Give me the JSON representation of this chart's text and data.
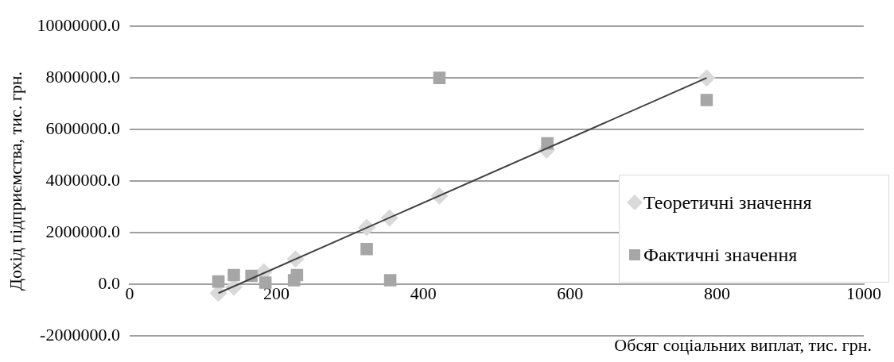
{
  "chart_data": {
    "type": "scatter",
    "xlabel": "Обсяг соціальних виплат, тис. грн.",
    "ylabel": "Дохід підприємства, тис. грн.",
    "xlim": [
      0,
      1000
    ],
    "xticks": [
      0,
      200,
      400,
      600,
      800,
      1000
    ],
    "ylim": [
      -2000000,
      10000000
    ],
    "yticks": [
      {
        "value": -2000000,
        "label": "-2000000.0"
      },
      {
        "value": 0,
        "label": "0.0"
      },
      {
        "value": 2000000,
        "label": "2000000.0"
      },
      {
        "value": 4000000,
        "label": "4000000.0"
      },
      {
        "value": 6000000,
        "label": "6000000.0"
      },
      {
        "value": 8000000,
        "label": "8000000.0"
      },
      {
        "value": 10000000,
        "label": "10000000.0"
      }
    ],
    "grid": "y",
    "legend": "right",
    "series": [
      {
        "name": "Теоретичні значення",
        "color": "#d9d9d9",
        "marker": "diamond",
        "x": [
          121,
          142,
          167,
          183,
          226,
          323,
          354,
          422,
          568,
          786
        ],
        "values": [
          -350000,
          -120000,
          null,
          470000,
          970000,
          2200000,
          2570000,
          3420000,
          5200000,
          8000000
        ]
      },
      {
        "name": "Фактичні значення",
        "color": "#a6a6a6",
        "marker": "square",
        "x": [
          121,
          142,
          166,
          185,
          224,
          228,
          323,
          355,
          422,
          569,
          786
        ],
        "values": [
          100000,
          350000,
          320000,
          60000,
          150000,
          350000,
          1360000,
          150000,
          8000000,
          5460000,
          7140000
        ]
      },
      {
        "type": "line",
        "color": "#404040",
        "marker": "none",
        "x": [
          121,
          786
        ],
        "values": [
          -350000,
          8000000
        ]
      }
    ]
  }
}
